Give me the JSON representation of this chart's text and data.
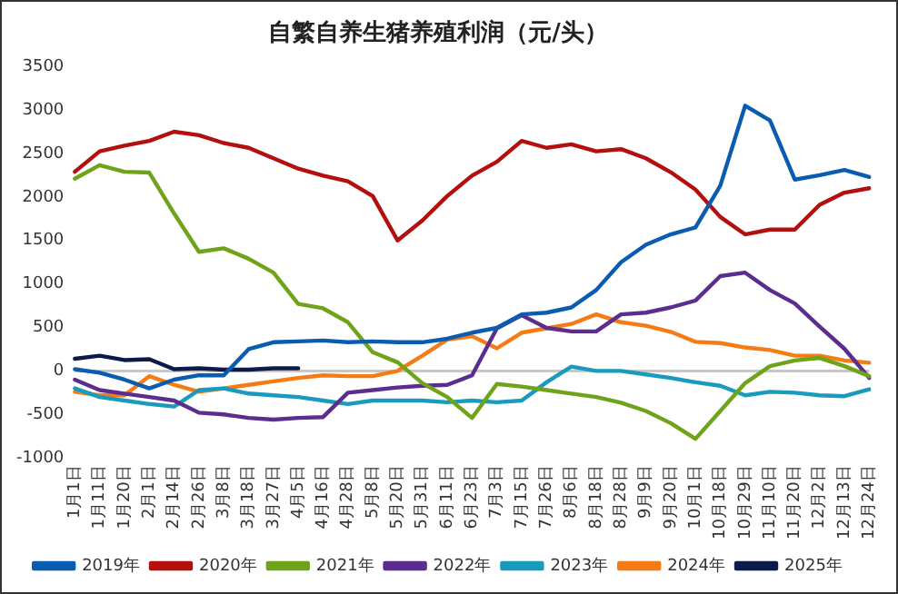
{
  "chart_data": {
    "type": "line",
    "title": "自繁自养生猪养殖利润（元/头）",
    "categories": [
      "1月1日",
      "1月11日",
      "1月20日",
      "2月1日",
      "2月14日",
      "2月26日",
      "3月8日",
      "3月18日",
      "3月27日",
      "4月5日",
      "4月16日",
      "4月28日",
      "5月8日",
      "5月20日",
      "5月31日",
      "6月11日",
      "6月23日",
      "7月3日",
      "7月15日",
      "7月26日",
      "8月6日",
      "8月18日",
      "8月28日",
      "9月9日",
      "9月20日",
      "10月1日",
      "10月18日",
      "10月29日",
      "11月10日",
      "11月20日",
      "12月2日",
      "12月13日",
      "12月24日"
    ],
    "series": [
      {
        "name": "2019年",
        "color": "#0a5cb0",
        "values": [
          20,
          -20,
          -100,
          -200,
          -100,
          -50,
          -50,
          250,
          330,
          340,
          350,
          330,
          340,
          330,
          330,
          370,
          440,
          495,
          650,
          670,
          730,
          930,
          1250,
          1450,
          1570,
          1650,
          2130,
          3050,
          2880,
          2200,
          2250,
          2310,
          2230
        ]
      },
      {
        "name": "2020年",
        "color": "#b30f0f",
        "values": [
          2290,
          2525,
          2590,
          2645,
          2750,
          2710,
          2620,
          2565,
          2445,
          2325,
          2245,
          2180,
          2010,
          1500,
          1730,
          2010,
          2245,
          2405,
          2645,
          2565,
          2605,
          2525,
          2550,
          2445,
          2285,
          2085,
          1770,
          1570,
          1625,
          1625,
          1910,
          2050,
          2100
        ]
      },
      {
        "name": "2021年",
        "color": "#6fa31a",
        "values": [
          2210,
          2365,
          2290,
          2280,
          1810,
          1370,
          1410,
          1290,
          1130,
          770,
          720,
          560,
          215,
          100,
          -140,
          -300,
          -540,
          -150,
          -180,
          -220,
          -260,
          -300,
          -365,
          -460,
          -600,
          -780,
          -460,
          -140,
          55,
          120,
          150,
          55,
          -60
        ]
      },
      {
        "name": "2022年",
        "color": "#5b2d8e",
        "values": [
          -100,
          -220,
          -260,
          -300,
          -340,
          -480,
          -500,
          -540,
          -560,
          -540,
          -530,
          -250,
          -220,
          -190,
          -170,
          -160,
          -50,
          490,
          640,
          495,
          455,
          455,
          650,
          670,
          730,
          810,
          1090,
          1130,
          930,
          775,
          510,
          255,
          -80
        ]
      },
      {
        "name": "2023年",
        "color": "#1a9bbd",
        "values": [
          -200,
          -300,
          -340,
          -380,
          -410,
          -220,
          -200,
          -260,
          -280,
          -300,
          -340,
          -380,
          -340,
          -340,
          -340,
          -360,
          -340,
          -360,
          -340,
          -130,
          50,
          0,
          0,
          -40,
          -80,
          -130,
          -170,
          -280,
          -240,
          -250,
          -280,
          -290,
          -210
        ]
      },
      {
        "name": "2024年",
        "color": "#f57c14",
        "values": [
          -240,
          -280,
          -280,
          -60,
          -160,
          -240,
          -200,
          -160,
          -120,
          -80,
          -50,
          -60,
          -60,
          0,
          175,
          360,
          400,
          260,
          440,
          490,
          540,
          650,
          560,
          520,
          450,
          335,
          320,
          270,
          240,
          175,
          175,
          120,
          95
        ]
      },
      {
        "name": "2025年",
        "color": "#0d1b4a",
        "values": [
          140,
          175,
          125,
          135,
          20,
          30,
          15,
          15,
          30,
          30,
          null,
          null,
          null,
          null,
          null,
          null,
          null,
          null,
          null,
          null,
          null,
          null,
          null,
          null,
          null,
          null,
          null,
          null,
          null,
          null,
          null,
          null,
          null
        ]
      }
    ],
    "ylim": [
      -1000,
      3500
    ],
    "yticks": [
      -1000,
      -500,
      0,
      500,
      1000,
      1500,
      2000,
      2500,
      3000,
      3500
    ],
    "ref_lines": [
      {
        "axis": "y",
        "value": 0,
        "color": "#c8c8c8"
      }
    ],
    "grid": false,
    "legend": "bottom",
    "marker": "none",
    "line_style": "solid"
  }
}
